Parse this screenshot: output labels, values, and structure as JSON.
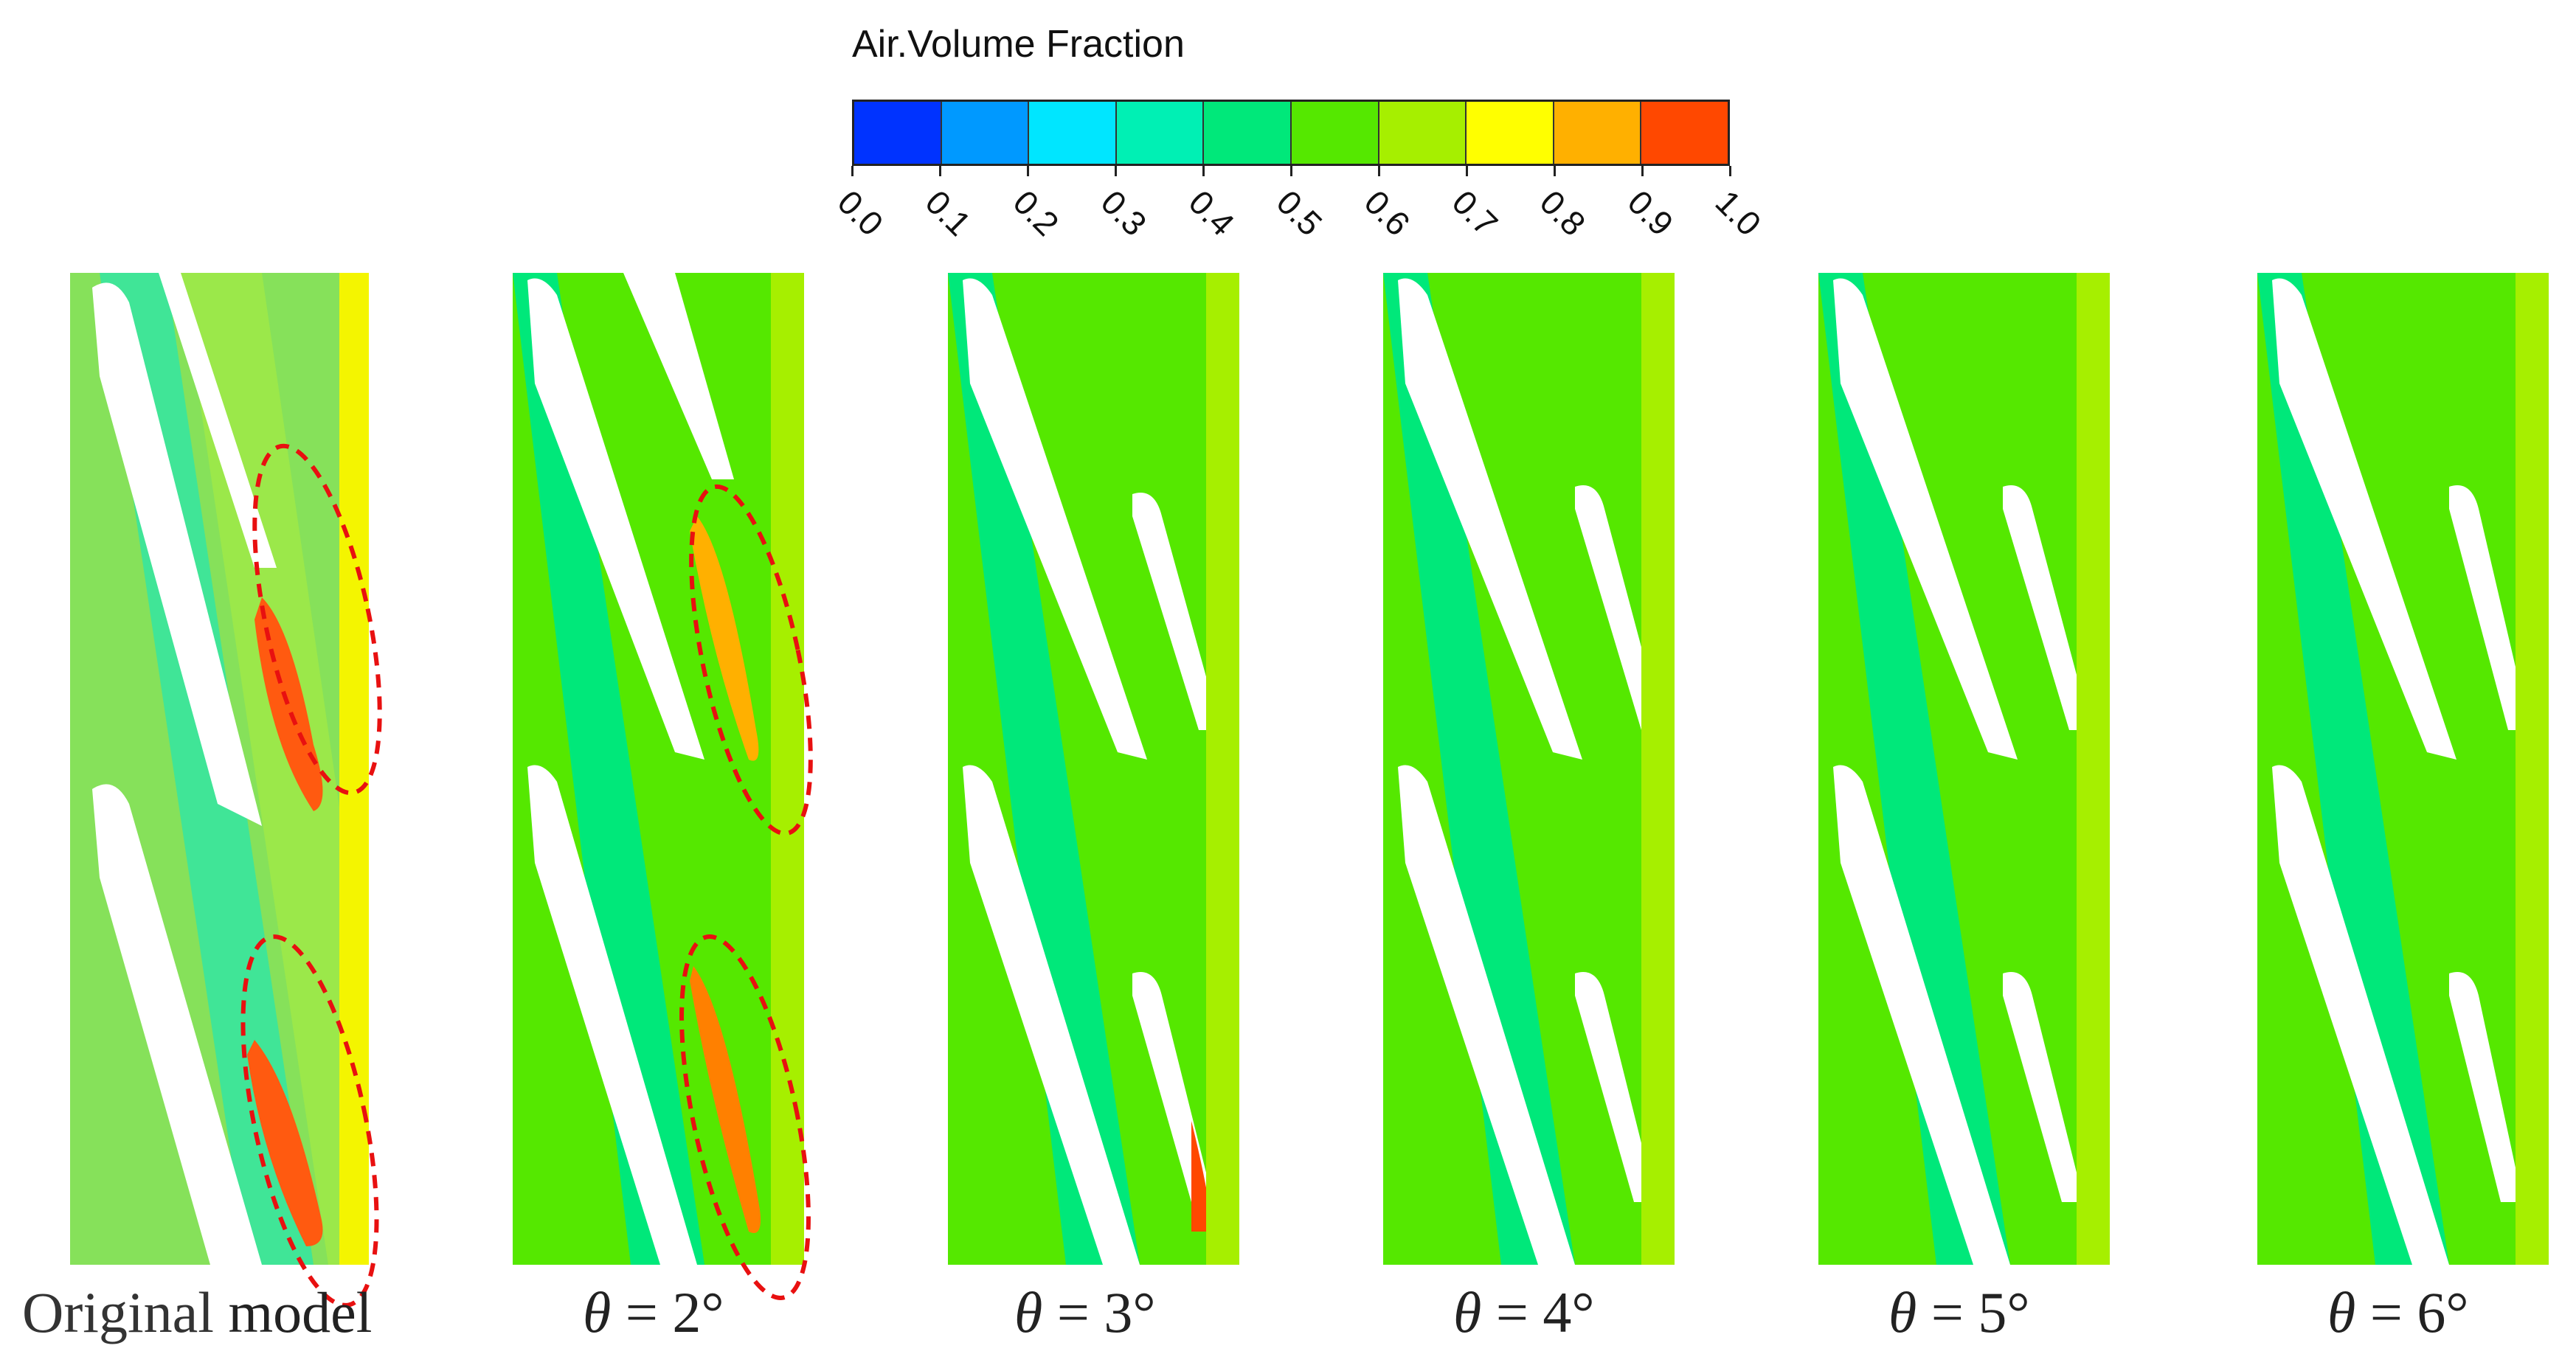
{
  "legend": {
    "title": "Air.Volume Fraction",
    "ticks": [
      "0.0",
      "0.1",
      "0.2",
      "0.3",
      "0.4",
      "0.5",
      "0.6",
      "0.7",
      "0.8",
      "0.9",
      "1.0"
    ],
    "colors": [
      "#0033ff",
      "#0099ff",
      "#00e6ff",
      "#00f0b4",
      "#00e87a",
      "#55e800",
      "#a6ef00",
      "#ffff00",
      "#ffb000",
      "#ff4800"
    ]
  },
  "panels": [
    {
      "id": "original",
      "caption_a": "Original",
      "caption_b": " model"
    },
    {
      "id": "theta2",
      "theta": "θ",
      "caption": " = 2°"
    },
    {
      "id": "theta3",
      "theta": "θ",
      "caption": " = 3°"
    },
    {
      "id": "theta4",
      "theta": "θ",
      "caption": " = 4°"
    },
    {
      "id": "theta5",
      "theta": "θ",
      "caption": " = 5°"
    },
    {
      "id": "theta6",
      "theta": "θ",
      "caption": " = 6°"
    }
  ]
}
